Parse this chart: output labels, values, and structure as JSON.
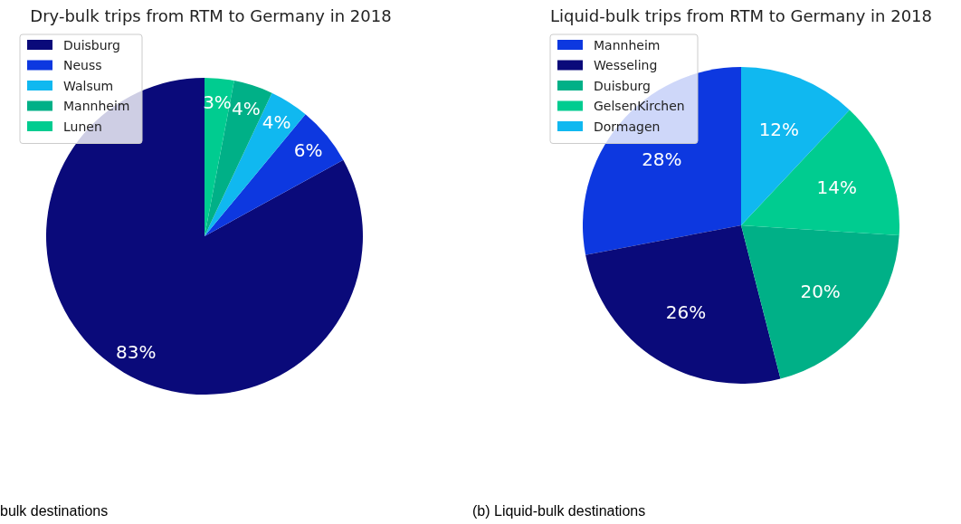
{
  "chart_data": [
    {
      "type": "pie",
      "title": "Dry-bulk trips from RTM to Germany in 2018",
      "categories": [
        "Duisburg",
        "Neuss",
        "Walsum",
        "Mannheim",
        "Lunen"
      ],
      "values": [
        83,
        6,
        4,
        4,
        3
      ],
      "colors": [
        "#0a0a7a",
        "#0d38e0",
        "#10b8f0",
        "#00b087",
        "#00cc90"
      ],
      "data_labels": true,
      "value_labels": [
        "83%",
        "6%",
        "4%",
        "4%",
        "3%"
      ],
      "legend": "top left",
      "annotations": [
        "bulk destinations"
      ]
    },
    {
      "type": "pie",
      "title": "Liquid-bulk trips from RTM to Germany in 2018",
      "categories": [
        "Mannheim",
        "Wesseling",
        "Duisburg",
        "GelsenKirchen",
        "Dormagen"
      ],
      "values": [
        28,
        26,
        20,
        14,
        12
      ],
      "colors": [
        "#0d38e0",
        "#0a0a7a",
        "#00b087",
        "#00cc90",
        "#10b8f0"
      ],
      "data_labels": true,
      "value_labels": [
        "28%",
        "26%",
        "20%",
        "14%",
        "12%"
      ],
      "legend": "top left",
      "annotations": [
        "(b) Liquid-bulk destinations"
      ]
    }
  ]
}
